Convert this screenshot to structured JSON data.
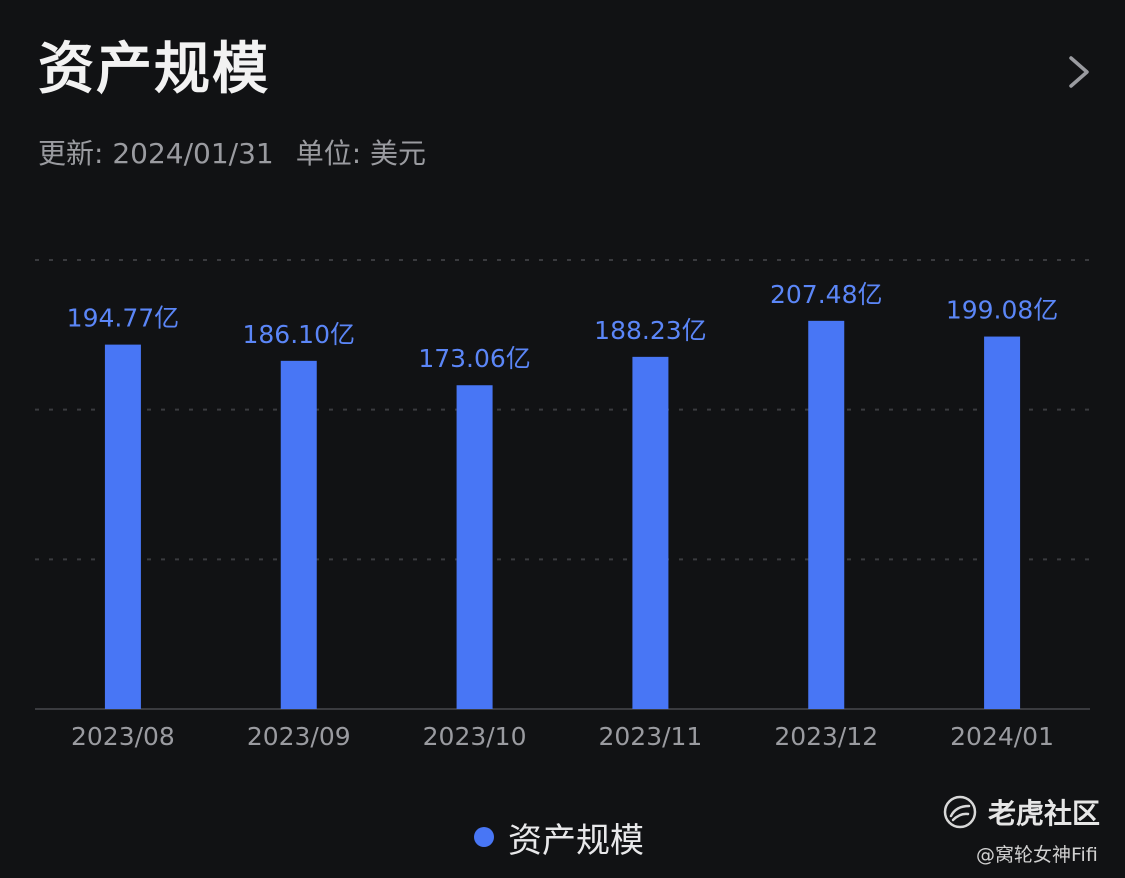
{
  "header": {
    "title": "资产规模",
    "updated": "更新: 2024/01/31",
    "unit": "单位: 美元"
  },
  "chart_data": {
    "type": "bar",
    "categories": [
      "2023/08",
      "2023/09",
      "2023/10",
      "2023/11",
      "2023/12",
      "2024/01"
    ],
    "values": [
      194.77,
      186.1,
      173.06,
      188.23,
      207.48,
      199.08
    ],
    "data_labels": [
      "194.77亿",
      "186.10亿",
      "173.06亿",
      "188.23亿",
      "207.48亿",
      "199.08亿"
    ],
    "series": [
      {
        "name": "资产规模",
        "values": [
          194.77,
          186.1,
          173.06,
          188.23,
          207.48,
          199.08
        ]
      }
    ],
    "title": "资产规模",
    "xlabel": "",
    "ylabel": "",
    "ylim": [
      0,
      240
    ],
    "grid": true,
    "legend": "bottom-center",
    "bar_color": "#4876f5"
  },
  "legend": {
    "label": "资产规模"
  },
  "watermark": {
    "brand": "老虎社区",
    "user": "@窝轮女神Fifi"
  },
  "icons": {
    "more": "chevron-right-icon",
    "logo": "tiger-logo-icon"
  }
}
